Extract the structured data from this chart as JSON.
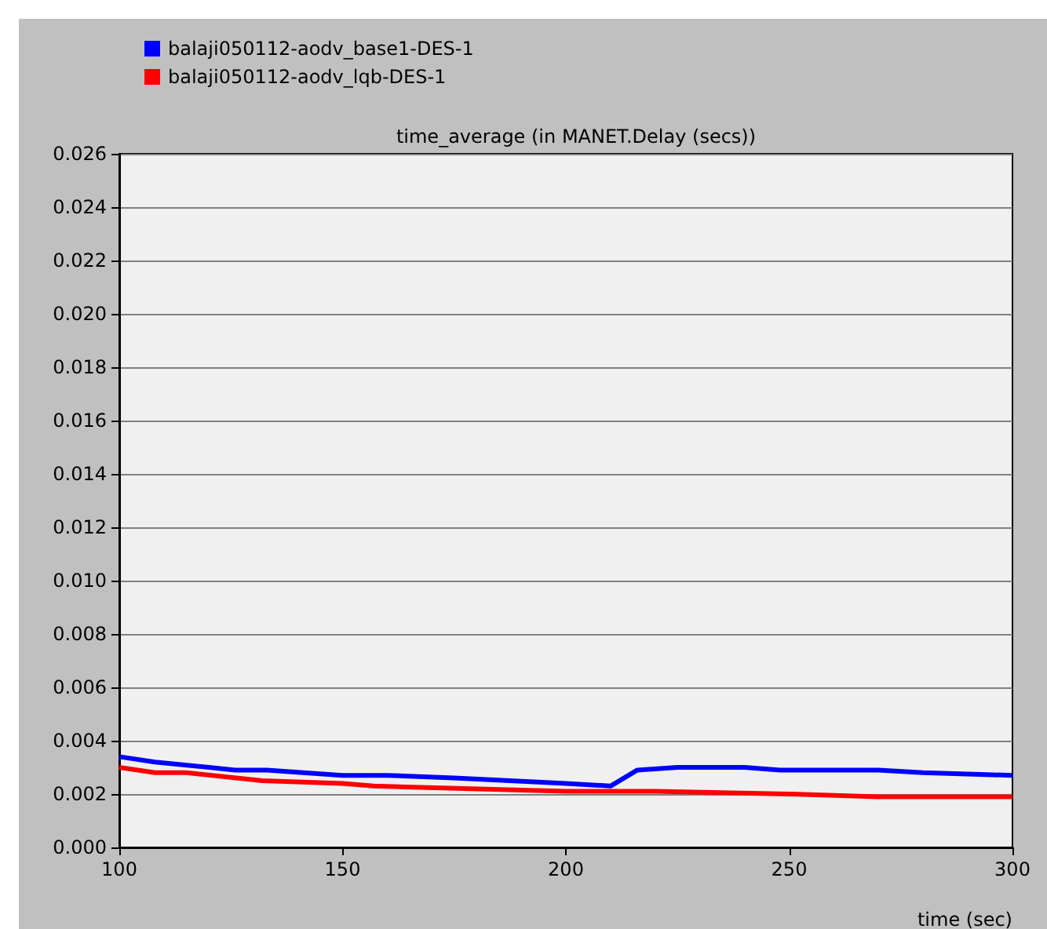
{
  "chart_data": {
    "type": "line",
    "title": "time_average (in MANET.Delay (secs))",
    "xlabel": "time (sec)",
    "xlim": [
      100,
      300
    ],
    "xticks": [
      100,
      150,
      200,
      250,
      300
    ],
    "ylim": [
      0,
      0.026
    ],
    "yticks": [
      {
        "value": 0,
        "label": "0.000"
      },
      {
        "value": 0.002,
        "label": "0.002"
      },
      {
        "value": 0.004,
        "label": "0.004"
      },
      {
        "value": 0.006,
        "label": "0.006"
      },
      {
        "value": 0.008,
        "label": "0.008"
      },
      {
        "value": 0.01,
        "label": "0.010"
      },
      {
        "value": 0.012,
        "label": "0.012"
      },
      {
        "value": 0.014,
        "label": "0.014"
      },
      {
        "value": 0.016,
        "label": "0.016"
      },
      {
        "value": 0.018,
        "label": "0.018"
      },
      {
        "value": 0.02,
        "label": "0.020"
      },
      {
        "value": 0.022,
        "label": "0.022"
      },
      {
        "value": 0.024,
        "label": "0.024"
      },
      {
        "value": 0.026,
        "label": "0.026"
      }
    ],
    "grid": "y",
    "legend": "top left",
    "marker": "none",
    "series": [
      {
        "name": "balaji050112-aodv_base1-DES-1",
        "color": "#0000ff",
        "x": [
          100,
          108,
          126,
          133,
          150,
          160,
          175,
          200,
          210,
          216,
          225,
          240,
          248,
          260,
          270,
          280,
          300
        ],
        "values": [
          0.0034,
          0.0032,
          0.0029,
          0.0029,
          0.0027,
          0.0027,
          0.0026,
          0.0024,
          0.0023,
          0.0029,
          0.003,
          0.003,
          0.0029,
          0.0029,
          0.0029,
          0.0028,
          0.0027
        ]
      },
      {
        "name": "balaji050112-aodv_lqb-DES-1",
        "color": "#ff0000",
        "x": [
          100,
          108,
          115,
          132,
          150,
          157,
          200,
          220,
          250,
          270,
          300
        ],
        "values": [
          0.003,
          0.0028,
          0.0028,
          0.0025,
          0.0024,
          0.0023,
          0.0021,
          0.0021,
          0.002,
          0.0019,
          0.0019
        ]
      }
    ]
  }
}
